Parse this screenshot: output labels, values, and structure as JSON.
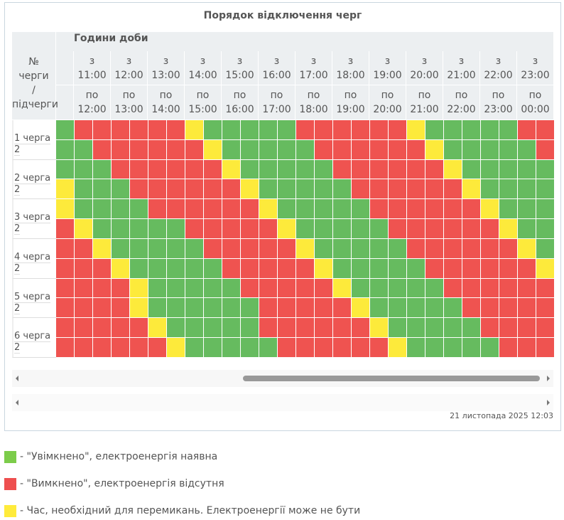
{
  "title": "Порядок відключення черг",
  "corner_header": [
    "№ черги",
    "/",
    "підчерги"
  ],
  "hours_header": "Години доби",
  "from_word": "з",
  "to_word": "по",
  "hours_from": [
    "11:00",
    "12:00",
    "13:00",
    "14:00",
    "15:00",
    "16:00",
    "17:00",
    "18:00",
    "19:00",
    "20:00",
    "21:00",
    "22:00",
    "23:00"
  ],
  "hours_to": [
    "12:00",
    "13:00",
    "14:00",
    "15:00",
    "16:00",
    "17:00",
    "18:00",
    "19:00",
    "20:00",
    "21:00",
    "22:00",
    "23:00",
    "00:00"
  ],
  "queues": [
    {
      "label": "1 черга",
      "sub": "2"
    },
    {
      "label": "2 черга",
      "sub": "2"
    },
    {
      "label": "3 черга",
      "sub": "2"
    },
    {
      "label": "4 черга",
      "sub": "2"
    },
    {
      "label": "5 черга",
      "sub": "2"
    },
    {
      "label": "6 черга",
      "sub": "2"
    }
  ],
  "colors": {
    "G": "#66bb5f",
    "R": "#ef5350",
    "Y": "#fdea3b"
  },
  "rows": [
    "GRRRRRRYGGGGGRRRRRRYGGGGGRR",
    "GGRRRRRRYGGGGGRRRRRRYGGGGGR",
    "GGGRRRRRRYGGGGGRRRRRRYGGGGG",
    "YGGGRRRRRRYGGGGGRRRRRRYGGGG",
    "YGGGGRRRRRRYGGGGGRRRRRRYGGG",
    "RYGGGGGRRRRRYGGGGGRRRRRRYGG",
    "RRYGGGGGRRRRRYGGGGGRRRRRRYG",
    "RRRYGGGGGRRRRRYGGGGGRRRRRRY",
    "RRRRYGGGGGRRRRRYGGGGGRRRRRR",
    "RRRRYGGGGGGRRRRRYGGGGGRRRRR",
    "RRRRRYGGGGGRRRRRRYGGGGGRRRR",
    "RRRRRRYGGGGGRRRRRRYGGGGGRRR"
  ],
  "timestamp": "21 листопада 2025 12:03",
  "legend": [
    {
      "color": "#7ccc4a",
      "label": "- \"Увімкнено\", електроенергія наявна"
    },
    {
      "color": "#ee4f4f",
      "label": "- \"Вимкнено\", електроенергія відсутня"
    },
    {
      "color": "#ffeb3b",
      "label": "- Час, необхідний для перемикань. Електроенергії може не бути"
    }
  ]
}
